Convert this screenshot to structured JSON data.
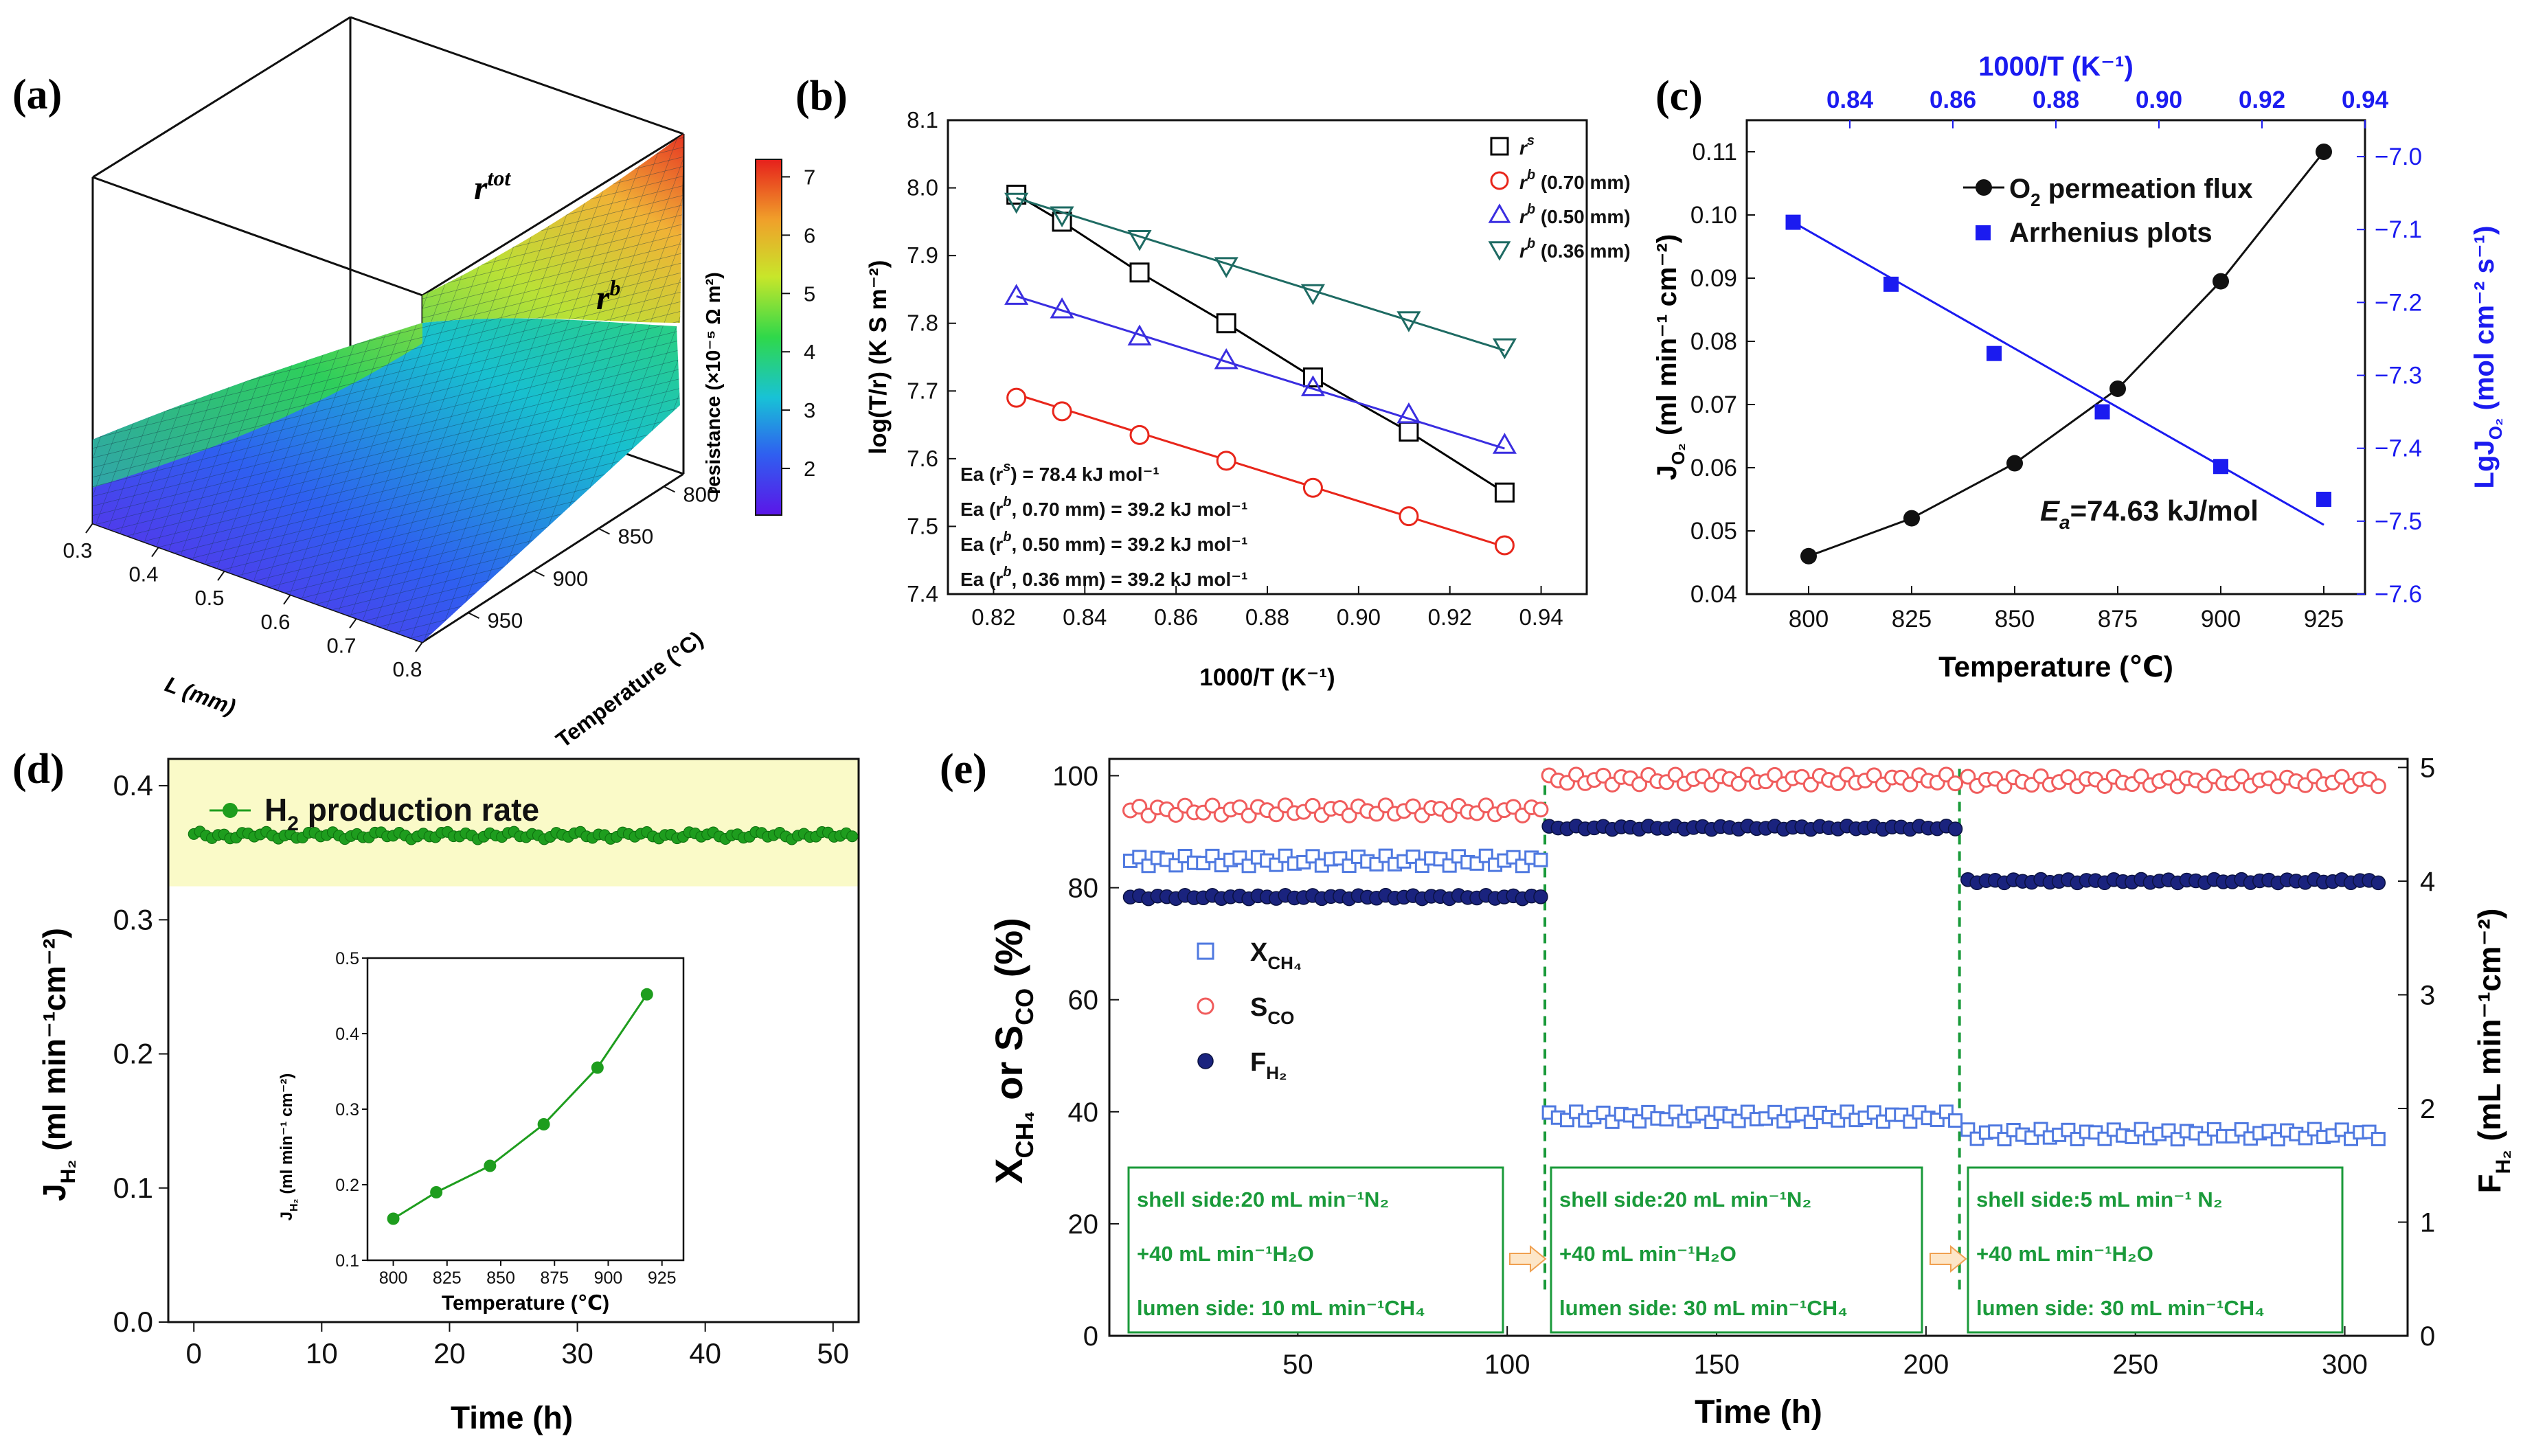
{
  "panels": {
    "a": {
      "label": "(a)",
      "chart_data": {
        "type": "surface3d",
        "surfaces": [
          "r^tot",
          "r^b"
        ],
        "surface_labels": {
          "tot_main": "r",
          "tot_sup": "tot",
          "b_main": "r",
          "b_sup": "b"
        },
        "x_label": "L (mm)",
        "x_ticks": [
          "0.3",
          "0.4",
          "0.5",
          "0.6",
          "0.7",
          "0.8"
        ],
        "y_label": "Temperature (°C)",
        "y_ticks": [
          "800",
          "850",
          "900",
          "950"
        ],
        "colorbar_label": "resistance (×10⁻⁵ Ω m²)",
        "colorbar_ticks": [
          "7",
          "6",
          "5",
          "4",
          "3",
          "2"
        ],
        "colorbar_range": [
          1.2,
          7.3
        ]
      }
    },
    "b": {
      "label": "(b)",
      "chart_data": {
        "type": "line",
        "xlabel": "1000/T (K⁻¹)",
        "ylabel": "log(T/r) (K S m⁻²)",
        "xlim": [
          0.81,
          0.95
        ],
        "ylim": [
          7.4,
          8.1
        ],
        "x_ticks": [
          "0.82",
          "0.84",
          "0.86",
          "0.88",
          "0.90",
          "0.92",
          "0.94"
        ],
        "y_ticks": [
          "7.4",
          "7.5",
          "7.6",
          "7.7",
          "7.8",
          "7.9",
          "8.0",
          "8.1"
        ],
        "x": [
          0.825,
          0.835,
          0.852,
          0.871,
          0.89,
          0.911,
          0.932
        ],
        "series": [
          {
            "name": "r^s",
            "legend_main": "r",
            "legend_sup": "s",
            "legend_extra": "",
            "marker": "square",
            "color": "#000000",
            "values": [
              7.99,
              7.95,
              7.875,
              7.8,
              7.72,
              7.64,
              7.55
            ],
            "fit": [
              7.99,
              7.55
            ]
          },
          {
            "name": "r^b (0.70 mm)",
            "legend_main": "r",
            "legend_sup": "b",
            "legend_extra": " (0.70 mm)",
            "marker": "circle",
            "color": "#e8261b",
            "values": [
              7.69,
              7.67,
              7.635,
              7.597,
              7.557,
              7.515,
              7.472
            ],
            "fit": [
              7.695,
              7.47
            ]
          },
          {
            "name": "r^b (0.50 mm)",
            "legend_main": "r",
            "legend_sup": "b",
            "legend_extra": " (0.50 mm)",
            "marker": "triangle-up",
            "color": "#3a2ee0",
            "values": [
              7.84,
              7.82,
              7.78,
              7.745,
              7.705,
              7.665,
              7.62
            ],
            "fit": [
              7.84,
              7.615
            ]
          },
          {
            "name": "r^b (0.36 mm)",
            "legend_main": "r",
            "legend_sup": "b",
            "legend_extra": " (0.36 mm)",
            "marker": "triangle-down",
            "color": "#1e6b63",
            "values": [
              7.98,
              7.96,
              7.925,
              7.885,
              7.845,
              7.805,
              7.765
            ],
            "fit": [
              7.985,
              7.76
            ]
          }
        ],
        "annotations": [
          {
            "pre": "Ea (r",
            "sup": "s",
            "post": ") = 78.4 kJ mol⁻¹"
          },
          {
            "pre": "Ea (r",
            "sup": "b",
            "post": ", 0.70 mm) = 39.2 kJ mol⁻¹"
          },
          {
            "pre": "Ea (r",
            "sup": "b",
            "post": ", 0.50 mm) = 39.2 kJ mol⁻¹"
          },
          {
            "pre": "Ea (r",
            "sup": "b",
            "post": ", 0.36 mm) = 39.2 kJ mol⁻¹"
          }
        ]
      }
    },
    "c": {
      "label": "(c)",
      "chart_data": {
        "type": "line",
        "xlabel": "Temperature (℃)",
        "top_xlabel": "1000/T (K⁻¹)",
        "ylabel_main": "J",
        "ylabel_sub": "O₂",
        "ylabel_unit": " (ml min⁻¹ cm⁻²)",
        "y2label_main": "LgJ",
        "y2label_sub": "O₂",
        "y2label_unit": " (mol cm⁻² s⁻¹)",
        "xlim": [
          785,
          935
        ],
        "ylim": [
          0.04,
          0.115
        ],
        "y2lim": [
          -7.6,
          -6.95
        ],
        "top_xlim": [
          0.82,
          0.94
        ],
        "x_ticks": [
          "800",
          "825",
          "850",
          "875",
          "900",
          "925"
        ],
        "y_ticks": [
          "0.04",
          "0.05",
          "0.06",
          "0.07",
          "0.08",
          "0.09",
          "0.10",
          "0.11"
        ],
        "y2_ticks": [
          "-7.6",
          "-7.5",
          "-7.4",
          "-7.3",
          "-7.2",
          "-7.1",
          "-7.0"
        ],
        "top_x_ticks": [
          "0.84",
          "0.86",
          "0.88",
          "0.90",
          "0.92",
          "0.94"
        ],
        "series": [
          {
            "name": "O₂ permeation flux",
            "marker": "circle",
            "color": "#000000",
            "x": [
              800,
              825,
              850,
              875,
              900,
              925
            ],
            "values": [
              0.046,
              0.052,
              0.0607,
              0.0725,
              0.0895,
              0.11
            ]
          },
          {
            "name": "Arrhenius plots",
            "marker": "square",
            "color": "#1b1bf0",
            "axis": "right_top",
            "x": [
              0.829,
              0.848,
              0.868,
              0.889,
              0.912,
              0.932
            ],
            "values": [
              -7.09,
              -7.175,
              -7.27,
              -7.35,
              -7.425,
              -7.47
            ],
            "fit": {
              "x": [
                0.829,
                0.932
              ],
              "y": [
                -7.09,
                -7.505
              ]
            }
          }
        ],
        "legend": [
          {
            "pre": "O",
            "sub": "2",
            "post": " permeation flux"
          },
          {
            "pre": "Arrhenius plots",
            "sub": "",
            "post": ""
          }
        ],
        "annotation": {
          "main": "E",
          "sub": "a",
          "value": "=74.63 kJ/mol"
        }
      }
    },
    "d": {
      "label": "(d)",
      "chart_data": {
        "type": "line",
        "xlabel": "Time (h)",
        "ylabel_main": "J",
        "ylabel_sub": "H₂",
        "ylabel_unit": " (ml min⁻¹cm⁻²)",
        "xlim": [
          -2,
          52
        ],
        "ylim": [
          0.0,
          0.42
        ],
        "x_ticks": [
          "0",
          "10",
          "20",
          "30",
          "40",
          "50"
        ],
        "y_ticks": [
          "0.0",
          "0.1",
          "0.2",
          "0.3",
          "0.4"
        ],
        "series": [
          {
            "name": "H₂ production rate",
            "color": "#1e9d1e",
            "x_range": [
              0,
              51.5
            ],
            "count": 110,
            "mean": 0.363,
            "amplitude": 0.002
          }
        ],
        "legend": {
          "pre": "H",
          "sub": "2",
          "post": " production rate"
        },
        "highlight_band": [
          0.325,
          0.42
        ],
        "inset": {
          "type": "line",
          "xlabel": "Temperature (℃)",
          "ylabel_main": "J",
          "ylabel_sub": "H₂",
          "ylabel_unit": " (ml  min⁻¹ cm⁻²)",
          "xlim": [
            788,
            935
          ],
          "ylim": [
            0.1,
            0.5
          ],
          "x_ticks": [
            "800",
            "825",
            "850",
            "875",
            "900",
            "925"
          ],
          "y_ticks": [
            "0.1",
            "0.2",
            "0.3",
            "0.4",
            "0.5"
          ],
          "x": [
            800,
            820,
            845,
            870,
            895,
            918
          ],
          "values": [
            0.155,
            0.19,
            0.225,
            0.28,
            0.355,
            0.452
          ]
        }
      }
    },
    "e": {
      "label": "(e)",
      "chart_data": {
        "type": "scatter",
        "xlabel": "Time (h)",
        "ylabel_main1": "X",
        "ylabel_sub1": "CH₄",
        "ylabel_mid": " or S",
        "ylabel_sub2": "CO",
        "ylabel_unit": " (%)",
        "y2label_main": "F",
        "y2label_sub": "H₂",
        "y2label_unit": " (mL min⁻¹cm⁻²)",
        "xlim": [
          5,
          315
        ],
        "ylim": [
          0,
          103
        ],
        "y2lim": [
          0,
          5
        ],
        "x_ticks": [
          "50",
          "100",
          "150",
          "200",
          "250",
          "300"
        ],
        "y_ticks": [
          "0",
          "20",
          "40",
          "60",
          "80",
          "100"
        ],
        "y2_ticks": [
          "0",
          "1",
          "2",
          "3",
          "4",
          "5"
        ],
        "stage_boundaries": [
          109,
          208
        ],
        "series": [
          {
            "name": "X_CH4",
            "marker": "open-square",
            "color": "#4f79e0",
            "segments": [
              {
                "x": [
                  10,
                  108
                ],
                "mean": 84.8
              },
              {
                "x": [
                  110,
                  207
                ],
                "mean": 39.1
              },
              {
                "x": [
                  210,
                  308
                ],
                "mean": 36.0
              }
            ]
          },
          {
            "name": "S_CO",
            "marker": "open-circle",
            "color": "#f05c5c",
            "segments": [
              {
                "x": [
                  10,
                  108
                ],
                "mean": 93.8
              },
              {
                "x": [
                  110,
                  207
                ],
                "mean": 99.3
              },
              {
                "x": [
                  210,
                  308
                ],
                "mean": 99.0
              }
            ]
          },
          {
            "name": "F_H2",
            "marker": "filled-circle",
            "color": "#1a237e",
            "axis": "right",
            "segments": [
              {
                "x": [
                  10,
                  108
                ],
                "mean": 3.86
              },
              {
                "x": [
                  110,
                  207
                ],
                "mean": 4.47
              },
              {
                "x": [
                  210,
                  308
                ],
                "mean": 4.0
              }
            ]
          }
        ],
        "legend": [
          {
            "main": "X",
            "sub": "CH₄"
          },
          {
            "main": "S",
            "sub": "CO"
          },
          {
            "main": "F",
            "sub": "H₂"
          }
        ],
        "condition_boxes": [
          {
            "line1": "shell side:20 mL min⁻¹N₂",
            "line2": "+40 mL min⁻¹H₂O",
            "line3": "lumen side: 10 mL min⁻¹CH₄"
          },
          {
            "line1": "shell side:20 mL min⁻¹N₂",
            "line2": "+40 mL min⁻¹H₂O",
            "line3": "lumen side: 30 mL min⁻¹CH₄"
          },
          {
            "line1": "shell side:5 mL min⁻¹ N₂",
            "line2": "+40 mL min⁻¹H₂O",
            "line3": "lumen side: 30 mL min⁻¹CH₄"
          }
        ]
      }
    }
  }
}
